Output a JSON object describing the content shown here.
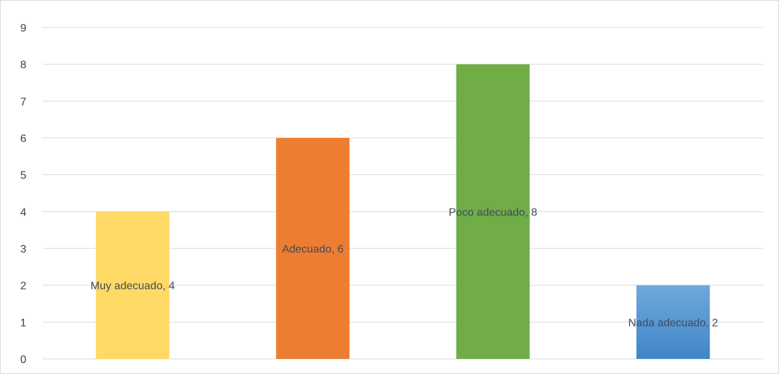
{
  "chart_data": {
    "type": "bar",
    "categories": [
      "Muy adecuado",
      "Adecuado",
      "Poco adecuado",
      "Nada adecuado"
    ],
    "values": [
      4,
      6,
      8,
      2
    ],
    "data_labels": [
      "Muy adecuado, 4",
      "Adecuado, 6",
      "Poco adecuado, 8",
      "Nada adecuado, 2"
    ],
    "colors": [
      "#ffd966",
      "#ed7d31",
      "#70ad47",
      "#5b9bd5"
    ],
    "title": "",
    "xlabel": "",
    "ylabel": "",
    "ylim": [
      0,
      9
    ],
    "yticks": [
      "0",
      "1",
      "2",
      "3",
      "4",
      "5",
      "6",
      "7",
      "8",
      "9"
    ],
    "grid": true,
    "legend": "none"
  }
}
